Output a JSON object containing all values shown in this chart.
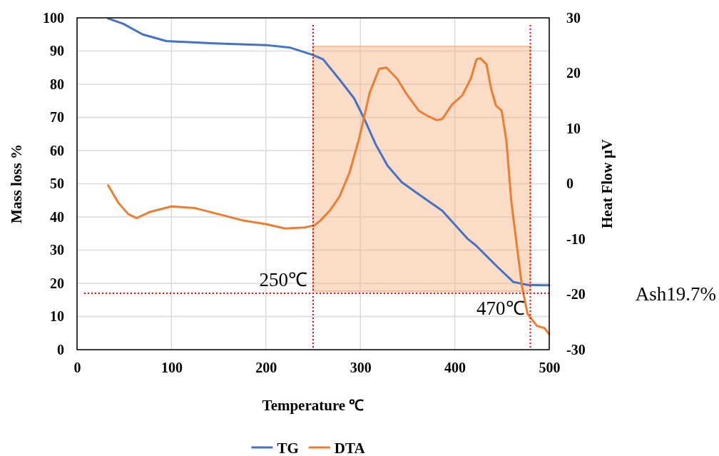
{
  "chart_data": {
    "type": "line",
    "xlabel": "Temperature ℃",
    "ylabel": "Mass loss %",
    "y2label": "Heat Flow μV",
    "xlim": [
      0,
      500
    ],
    "xticks": [
      0,
      100,
      200,
      300,
      400,
      500
    ],
    "ylim": [
      0,
      100
    ],
    "yticks": [
      0,
      10,
      20,
      30,
      40,
      50,
      60,
      70,
      80,
      90,
      100
    ],
    "y2lim": [
      -30,
      30
    ],
    "y2ticks": [
      -30,
      -20,
      -10,
      0,
      10,
      20,
      30
    ],
    "grid": true,
    "legend": "bottom",
    "marker": "none",
    "line_style": "solid",
    "series": [
      {
        "name": "TG",
        "color": "#4472c4",
        "x": [
          33,
          49,
          69.5,
          94.5,
          145,
          200,
          226,
          249,
          260.6,
          278,
          293.5,
          303.6,
          316,
          328.7,
          343.8,
          361.5,
          386.7,
          414,
          422,
          444.6,
          462,
          477,
          500
        ],
        "values": [
          99.8,
          98.2,
          95,
          93,
          92.3,
          91.8,
          91,
          88.9,
          87.5,
          81.4,
          75.7,
          69.9,
          62,
          55.5,
          50.5,
          46.9,
          41.9,
          33.3,
          31.5,
          25.1,
          20.4,
          19.5,
          19.4
        ]
      },
      {
        "name": "DTA",
        "color": "#ed7d31",
        "axis": "y2",
        "x": [
          33,
          44,
          54.4,
          63,
          77,
          100,
          125,
          150,
          175,
          200,
          220.6,
          241,
          249,
          250.8,
          258,
          268,
          278,
          288.5,
          298.6,
          310,
          320,
          327.6,
          339,
          349,
          361.9,
          373,
          381,
          386.7,
          397,
          408,
          417,
          423,
          427,
          433.6,
          438.6,
          443.7,
          449.7,
          454.7,
          459.8,
          471,
          477,
          487,
          495,
          500
        ],
        "values": [
          -0.3,
          -3.5,
          -5.5,
          -6.2,
          -5.1,
          -4.1,
          -4.4,
          -5.5,
          -6.6,
          -7.3,
          -8.1,
          -7.9,
          -7.6,
          -7.6,
          -6.6,
          -4.8,
          -2.3,
          2,
          8.1,
          16.5,
          20.8,
          21,
          19,
          16.2,
          13.2,
          12.1,
          11.5,
          11.7,
          14.3,
          16,
          19,
          22.5,
          22.7,
          21.6,
          17.1,
          14.1,
          13.2,
          7.7,
          -3.1,
          -18.4,
          -23.5,
          -25.7,
          -26.1,
          -27.2
        ]
      }
    ],
    "bands": [
      {
        "axis": "x",
        "from": 250,
        "to": 480,
        "color": "#f4b183"
      }
    ],
    "ref_lines": [
      {
        "axis": "x",
        "value": 250,
        "label": "250℃",
        "color": "#ff0000",
        "line_style": "dotted"
      },
      {
        "axis": "x",
        "value": 480,
        "label": "470℃",
        "color": "#ff0000",
        "line_style": "dotted"
      },
      {
        "axis": "y",
        "value": 17,
        "color": "#ff0000",
        "line_style": "dotted"
      }
    ],
    "annotations": [
      "Ash19.7%"
    ]
  }
}
